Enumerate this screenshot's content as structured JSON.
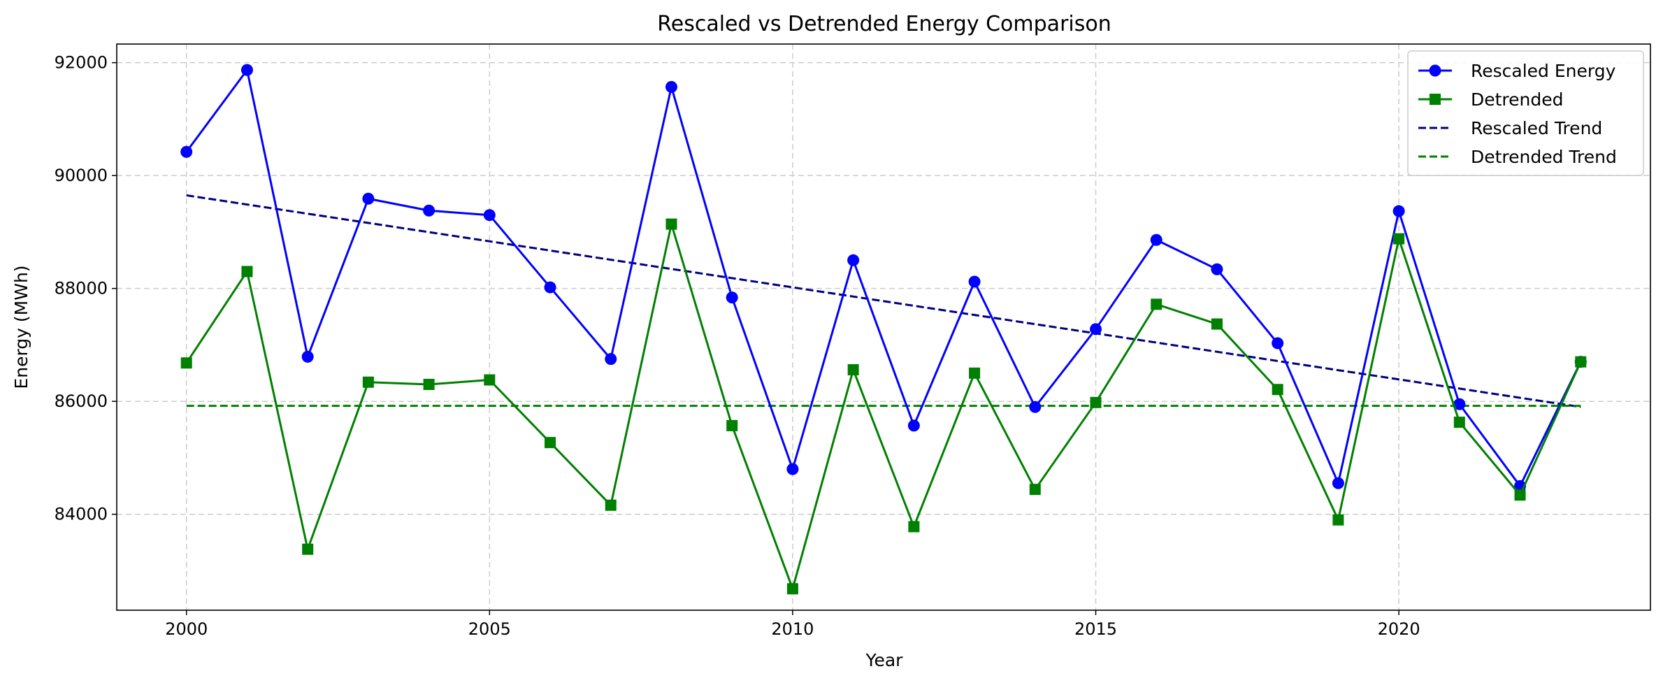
{
  "chart_data": {
    "type": "line",
    "title": "Rescaled vs Detrended Energy Comparison",
    "xlabel": "Year",
    "ylabel": "Energy (MWh)",
    "xlim": [
      1998.85,
      2024.15
    ],
    "ylim": [
      82300,
      92330
    ],
    "xticks": [
      2000,
      2005,
      2010,
      2015,
      2020
    ],
    "yticks": [
      84000,
      86000,
      88000,
      90000,
      92000
    ],
    "grid": true,
    "legend_position": "top-right",
    "x": [
      2000,
      2001,
      2002,
      2003,
      2004,
      2005,
      2006,
      2007,
      2008,
      2009,
      2010,
      2011,
      2012,
      2013,
      2014,
      2015,
      2016,
      2017,
      2018,
      2019,
      2020,
      2021,
      2022,
      2023
    ],
    "series": [
      {
        "name": "Rescaled Energy",
        "color": "#0000ff",
        "marker": "circle",
        "linestyle": "solid",
        "values": [
          90420,
          91870,
          86790,
          89590,
          89380,
          89300,
          88020,
          86750,
          91570,
          87840,
          84800,
          88500,
          85570,
          88120,
          85900,
          87280,
          88860,
          88340,
          87030,
          84550,
          89370,
          85950,
          84500,
          86700
        ]
      },
      {
        "name": "Detrended",
        "color": "#008000",
        "marker": "square",
        "linestyle": "solid",
        "values": [
          86680,
          88300,
          83380,
          86340,
          86300,
          86380,
          85270,
          84160,
          89140,
          85570,
          82680,
          86560,
          83780,
          86500,
          84440,
          85980,
          87720,
          87370,
          86210,
          83900,
          88880,
          85630,
          84340,
          86700
        ]
      },
      {
        "name": "Rescaled Trend",
        "color": "#000080",
        "marker": "none",
        "linestyle": "dashed",
        "x": [
          2000,
          2023
        ],
        "values": [
          89650,
          85900
        ]
      },
      {
        "name": "Detrended Trend",
        "color": "#008000",
        "marker": "none",
        "linestyle": "dashed",
        "x": [
          2000,
          2023
        ],
        "values": [
          85920,
          85920
        ]
      }
    ]
  }
}
